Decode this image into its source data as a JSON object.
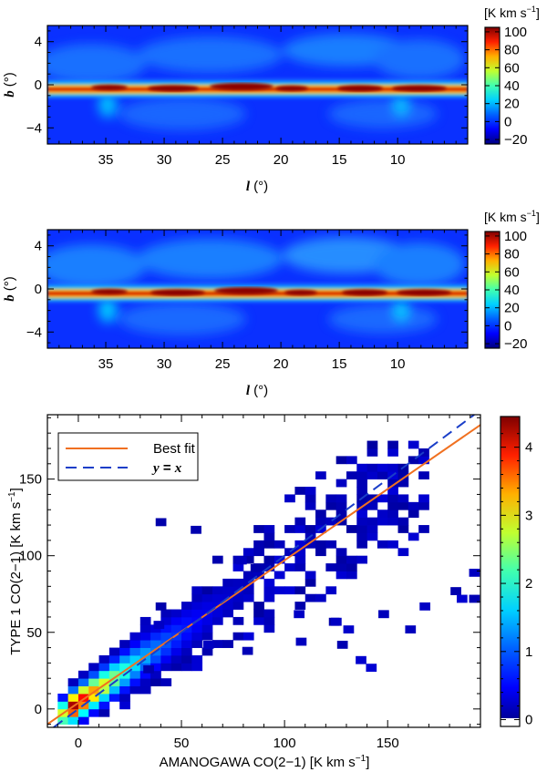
{
  "chart_data": [
    {
      "type": "heatmap",
      "title": "",
      "xlabel_var": "l",
      "xlabel_unit": "(°)",
      "ylabel_var": "b",
      "ylabel_unit": "(°)",
      "xlim": [
        40,
        4
      ],
      "ylim": [
        -5.5,
        5.5
      ],
      "xticks": [
        "35",
        "30",
        "25",
        "20",
        "15",
        "10"
      ],
      "xtick_values": [
        35,
        30,
        25,
        20,
        15,
        10
      ],
      "yticks": [
        "4",
        "0",
        "−4"
      ],
      "ytick_values": [
        4,
        0,
        -4
      ],
      "colorbar": {
        "label": "[K km s",
        "label_sup": "−1",
        "label_end": "]",
        "ticks": [
          "100",
          "80",
          "60",
          "40",
          "20",
          "0",
          "−20"
        ],
        "tick_values": [
          100,
          80,
          60,
          40,
          20,
          0,
          -20
        ],
        "range": [
          -25,
          105
        ]
      },
      "colormap": [
        "#00007f",
        "#0000ff",
        "#0080ff",
        "#00ffff",
        "#80ff80",
        "#ffff00",
        "#ff8000",
        "#ff0000",
        "#7f0000"
      ],
      "description_values": {
        "plane_peak_K_km_s": 100,
        "background_K_km_s": 0
      }
    },
    {
      "type": "heatmap",
      "title": "",
      "xlabel_var": "l",
      "xlabel_unit": "(°)",
      "ylabel_var": "b",
      "ylabel_unit": "(°)",
      "xlim": [
        40,
        4
      ],
      "ylim": [
        -5.5,
        5.5
      ],
      "xticks": [
        "35",
        "30",
        "25",
        "20",
        "15",
        "10"
      ],
      "xtick_values": [
        35,
        30,
        25,
        20,
        15,
        10
      ],
      "yticks": [
        "4",
        "0",
        "−4"
      ],
      "ytick_values": [
        4,
        0,
        -4
      ],
      "colorbar": {
        "label": "[K km s",
        "label_sup": "−1",
        "label_end": "]",
        "ticks": [
          "100",
          "80",
          "60",
          "40",
          "20",
          "0",
          "−20"
        ],
        "tick_values": [
          100,
          80,
          60,
          40,
          20,
          0,
          -20
        ],
        "range": [
          -25,
          105
        ]
      },
      "colormap": [
        "#00007f",
        "#0000ff",
        "#0080ff",
        "#00ffff",
        "#80ff80",
        "#ffff00",
        "#ff8000",
        "#ff0000",
        "#7f0000"
      ]
    },
    {
      "type": "heatmap",
      "subtype": "2d-histogram-scatter",
      "xlabel": "AMANOGAWA CO(2−1) [K km s",
      "xlabel_sup": "−1",
      "xlabel_end": "]",
      "ylabel": "TYPE 1 CO(2−1) [K km s",
      "ylabel_sup": "−1",
      "ylabel_end": "]",
      "xlim": [
        -15,
        195
      ],
      "ylim": [
        -12,
        192
      ],
      "xticks": [
        "0",
        "50",
        "100",
        "150"
      ],
      "xtick_values": [
        0,
        50,
        100,
        150
      ],
      "yticks": [
        "0",
        "50",
        "100",
        "150"
      ],
      "ytick_values": [
        0,
        50,
        100,
        150
      ],
      "bin_size": 5,
      "best_fit": {
        "slope": 0.93,
        "intercept": 4.0
      },
      "legend": {
        "position": "top-left",
        "entries": [
          {
            "label": "Best fit",
            "color": "#f07020",
            "style": "solid"
          },
          {
            "label": "y = x",
            "label_parts": [
              "y",
              " = ",
              "x"
            ],
            "color": "#1a3ec8",
            "style": "dashed"
          }
        ]
      },
      "colorbar": {
        "ticks": [
          "4",
          "3",
          "2",
          "1",
          "0"
        ],
        "tick_values": [
          4,
          3,
          2,
          1,
          0
        ],
        "range": [
          -0.1,
          4.45
        ]
      },
      "outliers": [
        [
          40,
          122
        ],
        [
          57,
          117
        ],
        [
          40,
          67
        ],
        [
          63,
          42
        ],
        [
          82,
          38
        ],
        [
          108,
          44
        ],
        [
          124,
          57
        ],
        [
          125,
          57
        ],
        [
          137,
          32
        ],
        [
          142,
          27
        ],
        [
          148,
          62
        ],
        [
          161,
          52
        ],
        [
          168,
          67
        ],
        [
          183,
          77
        ],
        [
          186,
          72
        ],
        [
          192,
          89
        ],
        [
          192,
          72
        ],
        [
          79,
          97
        ],
        [
          86,
          92
        ],
        [
          34,
          26
        ],
        [
          39,
          55
        ],
        [
          107,
          62
        ],
        [
          128,
          42
        ],
        [
          131,
          52
        ]
      ]
    }
  ]
}
